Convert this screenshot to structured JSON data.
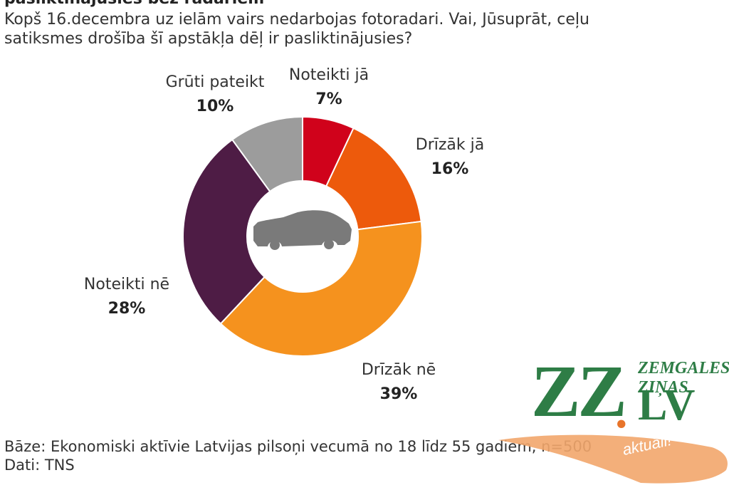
{
  "header": {
    "cut_title": "pasliktinājusies bez radariem",
    "question_line1": "Kopš 16.decembra uz ielām vairs nedarbojas fotoradari. Vai, Jūsuprāt, ceļu",
    "question_line2": "satiksmes drošība šī apstākļa dēļ ir pasliktinājusies?"
  },
  "chart_data": {
    "type": "pie",
    "donut": true,
    "center_icon": "car-icon",
    "slices": [
      {
        "label": "Noteikti jā",
        "value": 7,
        "display": "7%",
        "color": "#d0021b"
      },
      {
        "label": "Drīzāk jā",
        "value": 16,
        "display": "16%",
        "color": "#ed5a0c"
      },
      {
        "label": "Drīzāk nē",
        "value": 39,
        "display": "39%",
        "color": "#f5921e"
      },
      {
        "label": "Noteikti nē",
        "value": 28,
        "display": "28%",
        "color": "#4e1c45"
      },
      {
        "label": "Grūti pateikt",
        "value": 10,
        "display": "10%",
        "color": "#9c9c9c"
      }
    ]
  },
  "footer": {
    "base": "Bāze: Ekonomiski aktīvie Latvijas pilsoņi vecumā no 18 līdz 55 gadiem, n=500",
    "source": "Dati: TNS"
  },
  "logo": {
    "zz": "ZZ",
    "dot": ".",
    "lv": "LV",
    "zinas": "ZEMGALES ZIŅAS",
    "tagline": "aktuāli!",
    "green": "#2e7d46",
    "orange": "#e8742a"
  }
}
